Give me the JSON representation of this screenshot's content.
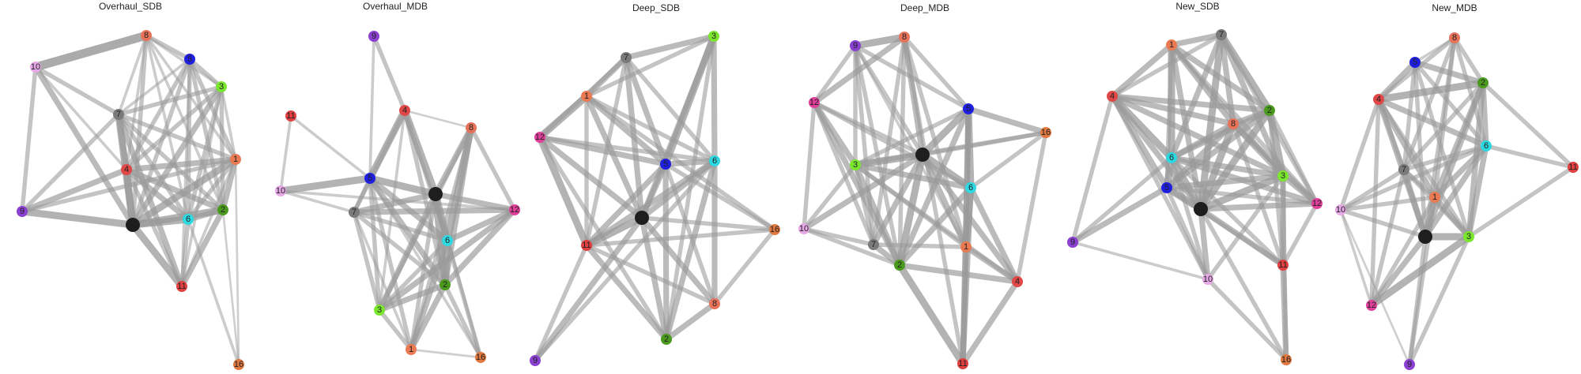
{
  "panels": [
    {
      "title": "Overhaul_SDB",
      "nodes": [
        {
          "id": "8",
          "color": "#e8735a"
        },
        {
          "id": "5",
          "color": "#1f1fe0"
        },
        {
          "id": "10",
          "color": "#e6a8e6"
        },
        {
          "id": "3",
          "color": "#7ae62e"
        },
        {
          "id": "7",
          "color": "#7a7a7a"
        },
        {
          "id": "1",
          "color": "#ea7a52"
        },
        {
          "id": "4",
          "color": "#e04848"
        },
        {
          "id": "9",
          "color": "#8a40d0"
        },
        {
          "id": "hub",
          "color": "#1e1e1e"
        },
        {
          "id": "6",
          "color": "#2ed8e0"
        },
        {
          "id": "2",
          "color": "#4a9a1e"
        },
        {
          "id": "11",
          "color": "#e04040"
        },
        {
          "id": "16",
          "color": "#e07840"
        }
      ]
    },
    {
      "title": "Overhaul_MDB",
      "nodes": [
        {
          "id": "9",
          "color": "#8a40d0"
        },
        {
          "id": "11",
          "color": "#e04040"
        },
        {
          "id": "4",
          "color": "#e04848"
        },
        {
          "id": "8",
          "color": "#e8735a"
        },
        {
          "id": "10",
          "color": "#e6a8e6"
        },
        {
          "id": "5",
          "color": "#1f1fe0"
        },
        {
          "id": "hub",
          "color": "#1e1e1e"
        },
        {
          "id": "7",
          "color": "#7a7a7a"
        },
        {
          "id": "12",
          "color": "#e0409a"
        },
        {
          "id": "6",
          "color": "#2ed8e0"
        },
        {
          "id": "2",
          "color": "#4a9a1e"
        },
        {
          "id": "3",
          "color": "#7ae62e"
        },
        {
          "id": "1",
          "color": "#ea7a52"
        },
        {
          "id": "16",
          "color": "#e07840"
        }
      ]
    },
    {
      "title": "Deep_SDB",
      "nodes": [
        {
          "id": "7",
          "color": "#7a7a7a"
        },
        {
          "id": "3",
          "color": "#7ae62e"
        },
        {
          "id": "1",
          "color": "#ea7a52"
        },
        {
          "id": "12",
          "color": "#e0409a"
        },
        {
          "id": "5",
          "color": "#1f1fe0"
        },
        {
          "id": "6",
          "color": "#2ed8e0"
        },
        {
          "id": "hub",
          "color": "#1e1e1e"
        },
        {
          "id": "11",
          "color": "#e04040"
        },
        {
          "id": "16",
          "color": "#e07840"
        },
        {
          "id": "8",
          "color": "#e8735a"
        },
        {
          "id": "2",
          "color": "#4a9a1e"
        },
        {
          "id": "9",
          "color": "#8a40d0"
        }
      ]
    },
    {
      "title": "Deep_MDB",
      "nodes": [
        {
          "id": "9",
          "color": "#8a40d0"
        },
        {
          "id": "8",
          "color": "#e8735a"
        },
        {
          "id": "12",
          "color": "#e0409a"
        },
        {
          "id": "5",
          "color": "#1f1fe0"
        },
        {
          "id": "16",
          "color": "#e07840"
        },
        {
          "id": "hub",
          "color": "#1e1e1e"
        },
        {
          "id": "3",
          "color": "#7ae62e"
        },
        {
          "id": "6",
          "color": "#2ed8e0"
        },
        {
          "id": "10",
          "color": "#e6a8e6"
        },
        {
          "id": "7",
          "color": "#7a7a7a"
        },
        {
          "id": "1",
          "color": "#ea7a52"
        },
        {
          "id": "2",
          "color": "#4a9a1e"
        },
        {
          "id": "4",
          "color": "#e04848"
        },
        {
          "id": "11",
          "color": "#e04040"
        }
      ]
    },
    {
      "title": "New_SDB",
      "nodes": [
        {
          "id": "1",
          "color": "#ea7a52"
        },
        {
          "id": "7",
          "color": "#7a7a7a"
        },
        {
          "id": "4",
          "color": "#e04848"
        },
        {
          "id": "2",
          "color": "#4a9a1e"
        },
        {
          "id": "8",
          "color": "#e8735a"
        },
        {
          "id": "6",
          "color": "#2ed8e0"
        },
        {
          "id": "3",
          "color": "#7ae62e"
        },
        {
          "id": "5",
          "color": "#1f1fe0"
        },
        {
          "id": "hub",
          "color": "#1e1e1e"
        },
        {
          "id": "12",
          "color": "#e0409a"
        },
        {
          "id": "9",
          "color": "#8a40d0"
        },
        {
          "id": "11",
          "color": "#e04040"
        },
        {
          "id": "10",
          "color": "#e6a8e6"
        },
        {
          "id": "16",
          "color": "#e07840"
        }
      ]
    },
    {
      "title": "New_MDB",
      "nodes": [
        {
          "id": "8",
          "color": "#e8735a"
        },
        {
          "id": "5",
          "color": "#1f1fe0"
        },
        {
          "id": "4",
          "color": "#e04848"
        },
        {
          "id": "2",
          "color": "#4a9a1e"
        },
        {
          "id": "6",
          "color": "#2ed8e0"
        },
        {
          "id": "7",
          "color": "#7a7a7a"
        },
        {
          "id": "11",
          "color": "#e04040"
        },
        {
          "id": "10",
          "color": "#e6a8e6"
        },
        {
          "id": "1",
          "color": "#ea7a52"
        },
        {
          "id": "hub",
          "color": "#1e1e1e"
        },
        {
          "id": "3",
          "color": "#7ae62e"
        },
        {
          "id": "12",
          "color": "#e0409a"
        },
        {
          "id": "9",
          "color": "#8a40d0"
        }
      ]
    }
  ],
  "edge_color": "#9a9a9a"
}
